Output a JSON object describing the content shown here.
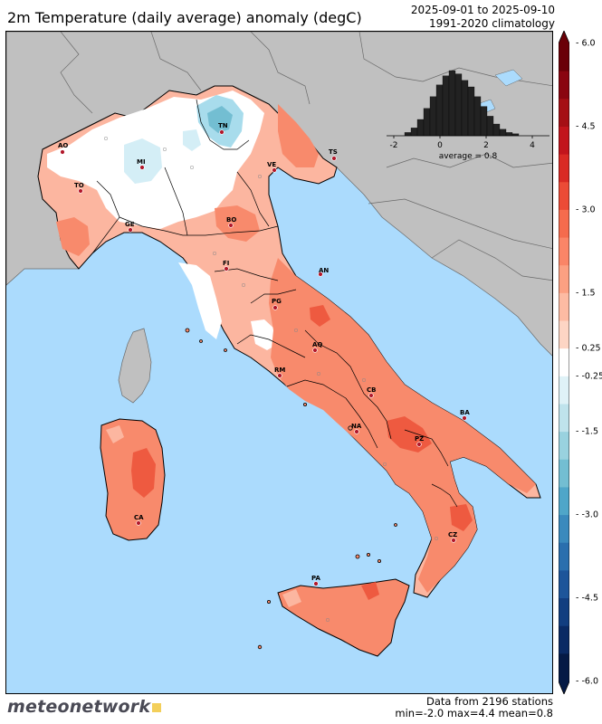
{
  "header": {
    "title": "2m Temperature (daily average) anomaly (degC)",
    "date_range": "2025-09-01 to 2025-09-10",
    "climatology": "1991-2020 climatology"
  },
  "histogram": {
    "tick_labels": [
      "-2",
      "0",
      "2",
      "4"
    ],
    "average_label": "average = 0.8",
    "bars": [
      0.05,
      0.12,
      0.25,
      0.42,
      0.6,
      0.78,
      0.92,
      1.0,
      0.95,
      0.85,
      0.75,
      0.6,
      0.45,
      0.3,
      0.18,
      0.1,
      0.05,
      0.03
    ],
    "range": [
      -2.2,
      4.4
    ]
  },
  "colorbar": {
    "tick_labels": [
      "6.0",
      "4.5",
      "3.0",
      "1.5",
      "0.25",
      "-0.25",
      "-1.5",
      "-3.0",
      "-4.5",
      "-6.0"
    ],
    "tick_values": [
      6.0,
      4.5,
      3.0,
      1.5,
      0.25,
      -0.25,
      -1.5,
      -3.0,
      -4.5,
      -6.0
    ],
    "bands": [
      "#6a0008",
      "#8a0510",
      "#a50f15",
      "#c2151c",
      "#d92a24",
      "#ec4b36",
      "#f56b4d",
      "#fa8567",
      "#fca082",
      "#fdbba3",
      "#fdd5c4",
      "#ffffff",
      "#dff2f7",
      "#bfe3ec",
      "#99d2df",
      "#73bed2",
      "#4fa6c9",
      "#3a8abd",
      "#2a6fae",
      "#1d559a",
      "#123e80",
      "#0a2a64",
      "#051a45"
    ]
  },
  "cities": [
    {
      "code": "AO"
    },
    {
      "code": "TO"
    },
    {
      "code": "MI"
    },
    {
      "code": "TN"
    },
    {
      "code": "VE"
    },
    {
      "code": "TS"
    },
    {
      "code": "GE"
    },
    {
      "code": "BO"
    },
    {
      "code": "FI"
    },
    {
      "code": "AN"
    },
    {
      "code": "PG"
    },
    {
      "code": "AQ"
    },
    {
      "code": "RM"
    },
    {
      "code": "CB"
    },
    {
      "code": "NA"
    },
    {
      "code": "BA"
    },
    {
      "code": "PZ"
    },
    {
      "code": "CZ"
    },
    {
      "code": "PA"
    },
    {
      "code": "CA"
    }
  ],
  "footer": {
    "data_line": "Data from 2196 stations",
    "stats_line": "min=-2.0 max=4.4 mean=0.8",
    "logo_text": "meteonetwork"
  },
  "colors": {
    "sea": "#abdbfd",
    "land_foreign": "#c0c0c0",
    "anomaly_warm_light": "#fcb6a0",
    "anomaly_warm": "#f88a6c",
    "anomaly_warm_strong": "#ee5a40",
    "anomaly_cold": "#a8dcec",
    "anomaly_neutral": "#ffffff",
    "city_marker": "#b2182b"
  }
}
